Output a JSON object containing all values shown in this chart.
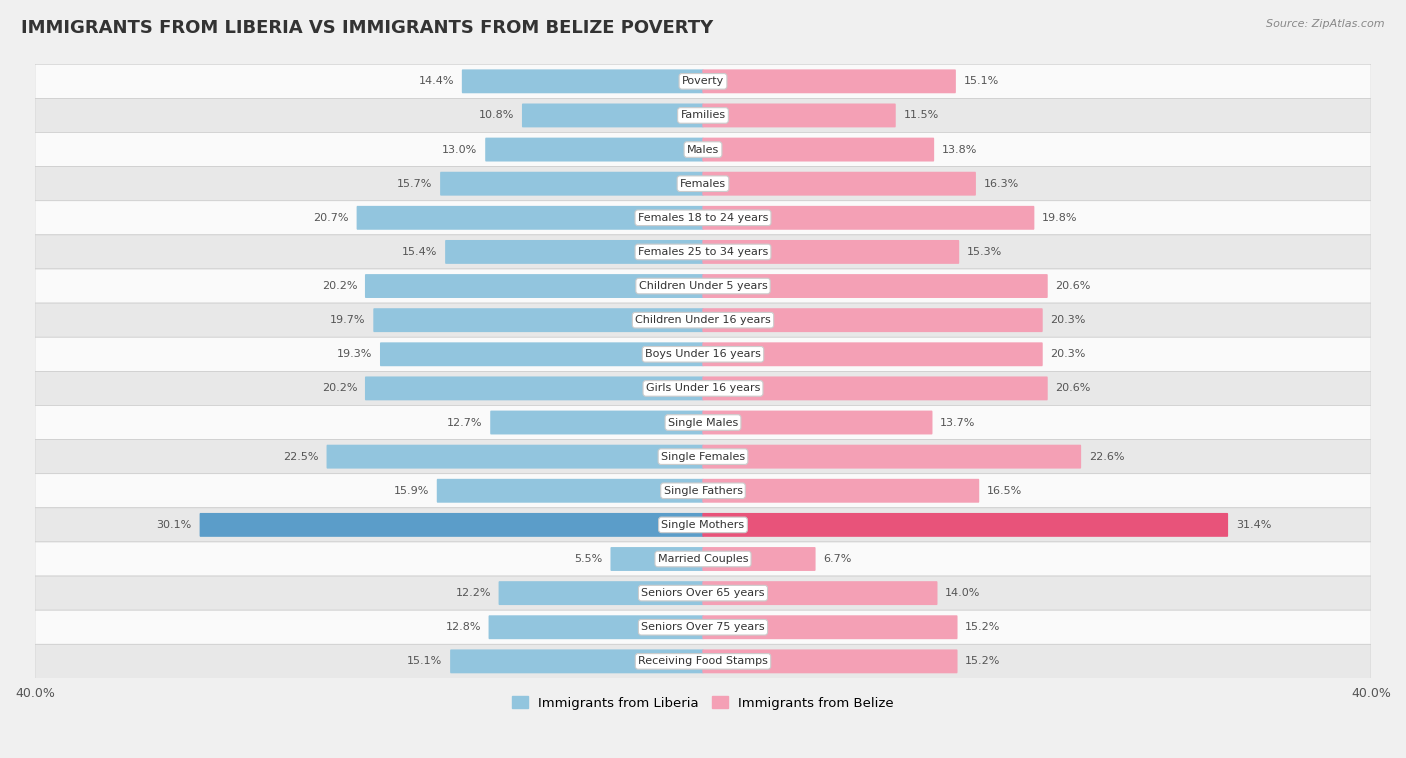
{
  "title": "IMMIGRANTS FROM LIBERIA VS IMMIGRANTS FROM BELIZE POVERTY",
  "source": "Source: ZipAtlas.com",
  "categories": [
    "Poverty",
    "Families",
    "Males",
    "Females",
    "Females 18 to 24 years",
    "Females 25 to 34 years",
    "Children Under 5 years",
    "Children Under 16 years",
    "Boys Under 16 years",
    "Girls Under 16 years",
    "Single Males",
    "Single Females",
    "Single Fathers",
    "Single Mothers",
    "Married Couples",
    "Seniors Over 65 years",
    "Seniors Over 75 years",
    "Receiving Food Stamps"
  ],
  "liberia_values": [
    14.4,
    10.8,
    13.0,
    15.7,
    20.7,
    15.4,
    20.2,
    19.7,
    19.3,
    20.2,
    12.7,
    22.5,
    15.9,
    30.1,
    5.5,
    12.2,
    12.8,
    15.1
  ],
  "belize_values": [
    15.1,
    11.5,
    13.8,
    16.3,
    19.8,
    15.3,
    20.6,
    20.3,
    20.3,
    20.6,
    13.7,
    22.6,
    16.5,
    31.4,
    6.7,
    14.0,
    15.2,
    15.2
  ],
  "liberia_color": "#92c5de",
  "belize_color": "#f4a0b5",
  "liberia_highlight_color": "#5b9dc9",
  "belize_highlight_color": "#e8537a",
  "background_color": "#f0f0f0",
  "row_light_color": "#fafafa",
  "row_dark_color": "#e8e8e8",
  "xlim": 40.0,
  "bar_height": 0.62,
  "legend_liberia": "Immigrants from Liberia",
  "legend_belize": "Immigrants from Belize",
  "title_fontsize": 13,
  "label_fontsize": 8.0,
  "value_fontsize": 8.0,
  "highlight_idx": 13
}
